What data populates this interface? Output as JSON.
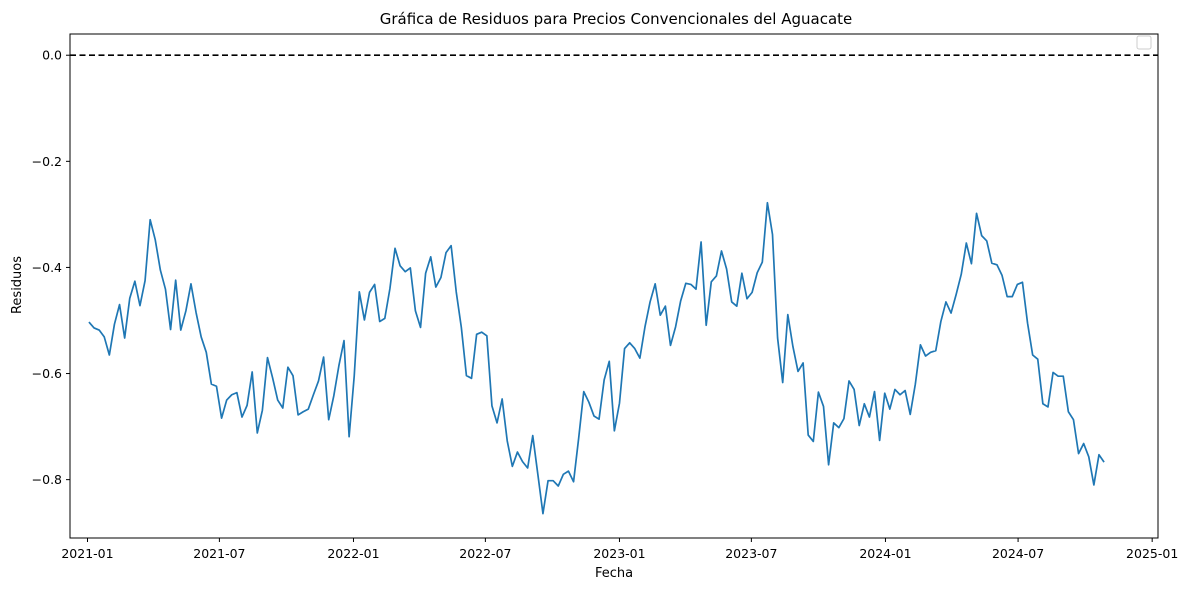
{
  "chart_data": {
    "type": "line",
    "title": "Gráfica de Residuos para Precios Convencionales del Aguacate",
    "xlabel": "Fecha",
    "ylabel": "Residuos",
    "xlim": [
      "2020-12-08",
      "2025-01-09"
    ],
    "ylim": [
      -0.91,
      0.04
    ],
    "x_ticks": [
      "2021-01",
      "2021-07",
      "2022-01",
      "2022-07",
      "2023-01",
      "2023-07",
      "2024-01",
      "2024-07",
      "2025-01"
    ],
    "y_ticks": [
      "0.0",
      "−0.2",
      "−0.4",
      "−0.6",
      "−0.8"
    ],
    "y_tick_values": [
      0.0,
      -0.2,
      -0.4,
      -0.6,
      -0.8
    ],
    "grid": false,
    "legend": "top-right (empty)",
    "reference_line": {
      "y": 0.0,
      "style": "dashed",
      "color": "#000000"
    },
    "colors": {
      "series": "#1f77b4"
    },
    "series": [
      {
        "x_start": "2021-01-03",
        "x_step_days": 7,
        "values": [
          -0.503,
          -0.514,
          -0.518,
          -0.531,
          -0.565,
          -0.507,
          -0.47,
          -0.533,
          -0.458,
          -0.426,
          -0.472,
          -0.425,
          -0.31,
          -0.348,
          -0.405,
          -0.441,
          -0.517,
          -0.424,
          -0.518,
          -0.482,
          -0.431,
          -0.485,
          -0.531,
          -0.56,
          -0.62,
          -0.624,
          -0.684,
          -0.65,
          -0.64,
          -0.636,
          -0.682,
          -0.66,
          -0.597,
          -0.712,
          -0.669,
          -0.57,
          -0.608,
          -0.65,
          -0.665,
          -0.588,
          -0.604,
          -0.678,
          -0.672,
          -0.667,
          -0.64,
          -0.614,
          -0.569,
          -0.687,
          -0.642,
          -0.585,
          -0.538,
          -0.719,
          -0.605,
          -0.446,
          -0.499,
          -0.447,
          -0.432,
          -0.502,
          -0.496,
          -0.44,
          -0.364,
          -0.397,
          -0.408,
          -0.401,
          -0.482,
          -0.513,
          -0.411,
          -0.38,
          -0.437,
          -0.419,
          -0.372,
          -0.359,
          -0.446,
          -0.513,
          -0.604,
          -0.609,
          -0.526,
          -0.522,
          -0.529,
          -0.661,
          -0.693,
          -0.648,
          -0.727,
          -0.775,
          -0.748,
          -0.766,
          -0.778,
          -0.717,
          -0.79,
          -0.864,
          -0.802,
          -0.802,
          -0.812,
          -0.79,
          -0.784,
          -0.804,
          -0.722,
          -0.634,
          -0.654,
          -0.68,
          -0.686,
          -0.612,
          -0.577,
          -0.708,
          -0.656,
          -0.553,
          -0.542,
          -0.553,
          -0.571,
          -0.512,
          -0.465,
          -0.431,
          -0.49,
          -0.473,
          -0.547,
          -0.512,
          -0.463,
          -0.43,
          -0.432,
          -0.441,
          -0.352,
          -0.509,
          -0.427,
          -0.416,
          -0.369,
          -0.403,
          -0.465,
          -0.473,
          -0.411,
          -0.459,
          -0.447,
          -0.41,
          -0.39,
          -0.278,
          -0.338,
          -0.533,
          -0.617,
          -0.489,
          -0.549,
          -0.596,
          -0.58,
          -0.716,
          -0.728,
          -0.635,
          -0.662,
          -0.772,
          -0.693,
          -0.702,
          -0.685,
          -0.614,
          -0.63,
          -0.698,
          -0.657,
          -0.682,
          -0.634,
          -0.726,
          -0.637,
          -0.667,
          -0.63,
          -0.64,
          -0.632,
          -0.677,
          -0.62,
          -0.546,
          -0.567,
          -0.56,
          -0.557,
          -0.502,
          -0.465,
          -0.486,
          -0.451,
          -0.413,
          -0.354,
          -0.393,
          -0.298,
          -0.34,
          -0.35,
          -0.392,
          -0.395,
          -0.415,
          -0.455,
          -0.455,
          -0.432,
          -0.428,
          -0.505,
          -0.565,
          -0.573,
          -0.657,
          -0.663,
          -0.598,
          -0.605,
          -0.605,
          -0.672,
          -0.687,
          -0.751,
          -0.732,
          -0.757,
          -0.81,
          -0.753,
          -0.767
        ]
      }
    ]
  }
}
